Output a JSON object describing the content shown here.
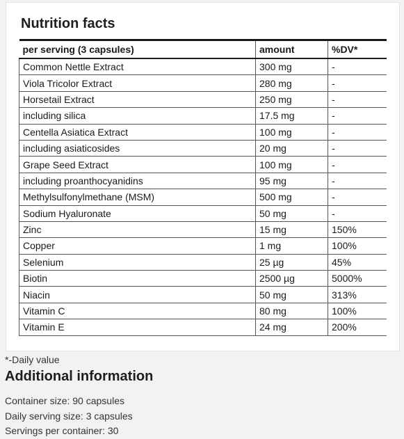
{
  "card": {
    "title": "Nutrition facts"
  },
  "table": {
    "headers": [
      "per serving (3 capsules)",
      "amount",
      "%DV*"
    ],
    "rows": [
      {
        "name": "Common Nettle Extract",
        "amount": "300 mg",
        "dv": "-"
      },
      {
        "name": "Viola Tricolor Extract",
        "amount": "280 mg",
        "dv": "-"
      },
      {
        "name": "Horsetail Extract",
        "amount": "250 mg",
        "dv": "-"
      },
      {
        "name": "including silica",
        "amount": "17.5 mg",
        "dv": "-"
      },
      {
        "name": "Centella Asiatica Extract",
        "amount": "100 mg",
        "dv": "-"
      },
      {
        "name": "including asiaticosides",
        "amount": "20 mg",
        "dv": "-"
      },
      {
        "name": "Grape Seed Extract",
        "amount": "100 mg",
        "dv": "-"
      },
      {
        "name": "including proanthocyanidins",
        "amount": "95 mg",
        "dv": "-"
      },
      {
        "name": "Methylsulfonylmethane (MSM)",
        "amount": "500 mg",
        "dv": "-"
      },
      {
        "name": "Sodium Hyaluronate",
        "amount": "50 mg",
        "dv": "-"
      },
      {
        "name": "Zinc",
        "amount": "15 mg",
        "dv": "150%"
      },
      {
        "name": "Copper",
        "amount": "1 mg",
        "dv": "100%"
      },
      {
        "name": "Selenium",
        "amount": "25 µg",
        "dv": "45%"
      },
      {
        "name": "Biotin",
        "amount": "2500 µg",
        "dv": "5000%"
      },
      {
        "name": "Niacin",
        "amount": "50 mg",
        "dv": "313%"
      },
      {
        "name": "Vitamin C",
        "amount": "80 mg",
        "dv": "100%"
      },
      {
        "name": "Vitamin E",
        "amount": "24 mg",
        "dv": "200%"
      }
    ]
  },
  "footnote": "*-Daily value",
  "additional": {
    "title": "Additional information",
    "items": [
      "Container size: 90 capsules",
      "Daily serving size: 3 capsules",
      "Servings per container: 30"
    ]
  }
}
